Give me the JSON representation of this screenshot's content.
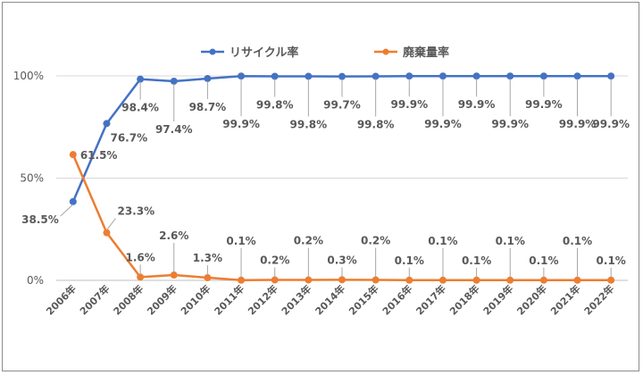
{
  "chart_data": {
    "type": "line",
    "categories": [
      "2006年",
      "2007年",
      "2008年",
      "2009年",
      "2010年",
      "2011年",
      "2012年",
      "2013年",
      "2014年",
      "2015年",
      "2016年",
      "2017年",
      "2018年",
      "2019年",
      "2020年",
      "2021年",
      "2022年"
    ],
    "series": [
      {
        "name": "リサイクル率",
        "color": "#4472c4",
        "values": [
          38.5,
          76.7,
          98.4,
          97.4,
          98.7,
          99.9,
          99.8,
          99.8,
          99.7,
          99.8,
          99.9,
          99.9,
          99.9,
          99.9,
          99.9,
          99.9,
          99.9
        ],
        "labels": [
          "38.5%",
          "76.7%",
          "98.4%",
          "97.4%",
          "98.7%",
          "99.9%",
          "99.8%",
          "99.8%",
          "99.7%",
          "99.8%",
          "99.9%",
          "99.9%",
          "99.9%",
          "99.9%",
          "99.9%",
          "99.9%",
          "99.9%"
        ]
      },
      {
        "name": "廃棄量率",
        "color": "#ed7d31",
        "values": [
          61.5,
          23.3,
          1.6,
          2.6,
          1.3,
          0.1,
          0.2,
          0.2,
          0.3,
          0.2,
          0.1,
          0.1,
          0.1,
          0.1,
          0.1,
          0.1,
          0.1
        ],
        "labels": [
          "61.5%",
          "23.3%",
          "1.6%",
          "2.6%",
          "1.3%",
          "0.1%",
          "0.2%",
          "0.2%",
          "0.3%",
          "0.2%",
          "0.1%",
          "0.1%",
          "0.1%",
          "0.1%",
          "0.1%",
          "0.1%",
          "0.1%"
        ]
      }
    ],
    "yticks": [
      "0%",
      "50%",
      "100%"
    ],
    "ylim": [
      0,
      100
    ],
    "grid": true,
    "legend": "top-center"
  }
}
